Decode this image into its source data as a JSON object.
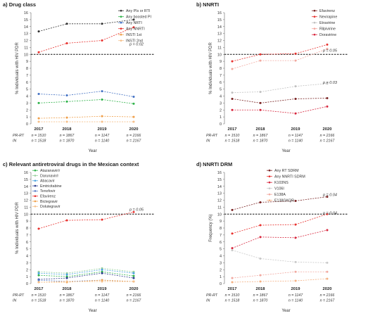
{
  "figure": {
    "y_axis_label_hivdr": "% Individuals with HIV PDR",
    "y_axis_label_freq": "Frequency (%)"
  },
  "chart_data": [
    {
      "type": "line",
      "title": "a) Drug class",
      "xlabel": "Year",
      "ylabel": "% Individuals with HIV PDR",
      "categories": [
        "2017",
        "2018",
        "2019",
        "2020"
      ],
      "ylim": [
        0,
        16
      ],
      "grid": false,
      "legend": "top-right",
      "reference_line": 10,
      "sample_rows": [
        {
          "label": "PR-RT",
          "values": [
            "n = 1510",
            "n = 1867",
            "n = 1147",
            "n = 2166"
          ]
        },
        {
          "label": "IN",
          "values": [
            "n = 1518",
            "n = 1870",
            "n = 1140",
            "n = 2167"
          ]
        }
      ],
      "annotations": [
        {
          "text": "p = 0.02",
          "x": "2020",
          "y": 11.5
        }
      ],
      "series": [
        {
          "name": "Any PIs or RTI",
          "color": "#333333",
          "values": [
            13.3,
            14.4,
            14.4,
            15.0
          ]
        },
        {
          "name": "Any boosted PI",
          "color": "#2fb34a",
          "values": [
            3.0,
            3.2,
            3.5,
            2.9
          ]
        },
        {
          "name": "Any NRTI",
          "color": "#4472c4",
          "values": [
            4.3,
            4.1,
            4.7,
            3.9
          ]
        },
        {
          "name": "Any NNRTI",
          "color": "#e8322f",
          "values": [
            10.3,
            11.6,
            12.0,
            13.9
          ]
        },
        {
          "name": "INSTI 1st",
          "color": "#f0a04b",
          "values": [
            0.8,
            0.9,
            1.1,
            1.0
          ]
        },
        {
          "name": "INSTI 2nd",
          "color": "#f6c08a",
          "values": [
            0.3,
            0.3,
            0.3,
            0.3
          ]
        }
      ]
    },
    {
      "type": "line",
      "title": "b) NNRTI",
      "xlabel": "Year",
      "ylabel": "% Individuals with HIV PDR",
      "categories": [
        "2017",
        "2018",
        "2019",
        "2020"
      ],
      "ylim": [
        0,
        16
      ],
      "grid": false,
      "legend": "top-right",
      "reference_line": 10,
      "sample_rows": [
        {
          "label": "PR-RT",
          "values": [
            "n = 1510",
            "n = 1867",
            "n = 1147",
            "n = 2166"
          ]
        },
        {
          "label": "IN",
          "values": [
            "n = 1518",
            "n = 1870",
            "n = 1140",
            "n = 2167"
          ]
        }
      ],
      "annotations": [
        {
          "text": "p = 0.05",
          "x": "2020",
          "y": 10.6
        },
        {
          "text": "p = 0.03",
          "x": "2020",
          "y": 6.0
        }
      ],
      "series": [
        {
          "name": "Efavirenz",
          "color": "#7a2323",
          "values": [
            3.6,
            3.0,
            3.6,
            3.7
          ]
        },
        {
          "name": "Nevirapine",
          "color": "#e8322f",
          "values": [
            9.0,
            10.0,
            10.1,
            11.4
          ]
        },
        {
          "name": "Etravirine",
          "color": "#c0c0c0",
          "values": [
            4.5,
            4.6,
            5.4,
            5.8
          ]
        },
        {
          "name": "Rilpivirine",
          "color": "#f2a9a0",
          "values": [
            7.9,
            9.1,
            9.1,
            10.8
          ]
        },
        {
          "name": "Doravirine",
          "color": "#d7263d",
          "values": [
            2.0,
            2.0,
            1.5,
            2.5
          ]
        }
      ]
    },
    {
      "type": "line",
      "title": "c) Relevant antiretroviral drugs in the Mexican context",
      "xlabel": "Year",
      "ylabel": "% Individuals with HIV PDR",
      "categories": [
        "2017",
        "2018",
        "2019",
        "2020"
      ],
      "ylim": [
        0,
        16
      ],
      "grid": false,
      "legend": "top-left",
      "reference_line": 10,
      "sample_rows": [
        {
          "label": "PR-RT",
          "values": [
            "n = 1510",
            "n = 1867",
            "n = 1147",
            "n = 2166"
          ]
        },
        {
          "label": "IN",
          "values": [
            "n = 1518",
            "n = 1870",
            "n = 1140",
            "n = 2167"
          ]
        }
      ],
      "annotations": [
        {
          "text": "p = 0.05",
          "x": "2020",
          "y": 10.7
        }
      ],
      "series": [
        {
          "name": "Atazanavir/r",
          "color": "#2fb34a",
          "values": [
            1.2,
            1.0,
            1.7,
            1.1
          ]
        },
        {
          "name": "Darunavir/r",
          "color": "#9ad19f",
          "values": [
            1.7,
            1.5,
            2.2,
            1.7
          ]
        },
        {
          "name": "Abacavir",
          "color": "#4aa3df",
          "values": [
            1.5,
            1.3,
            2.0,
            1.5
          ]
        },
        {
          "name": "Emtricitabine",
          "color": "#2e3f8f",
          "values": [
            0.6,
            0.8,
            1.5,
            0.8
          ]
        },
        {
          "name": "Tenofovir",
          "color": "#5b7fc7",
          "values": [
            0.5,
            0.3,
            0.5,
            0.3
          ]
        },
        {
          "name": "Efavirenz",
          "color": "#e8322f",
          "values": [
            7.9,
            9.1,
            9.2,
            10.3
          ]
        },
        {
          "name": "Bictegravir",
          "color": "#f0a04b",
          "values": [
            0.2,
            0.2,
            0.5,
            0.3
          ]
        },
        {
          "name": "Dolutegravir",
          "color": "#f6c08a",
          "values": [
            0.2,
            0.3,
            0.3,
            0.3
          ]
        }
      ]
    },
    {
      "type": "line",
      "title": "d) NNRTI DRM",
      "xlabel": "Year",
      "ylabel": "Frequency (%)",
      "categories": [
        "2017",
        "2018",
        "2019",
        "2020"
      ],
      "ylim": [
        0,
        16
      ],
      "grid": false,
      "legend": "top-right",
      "reference_line": 10,
      "sample_rows": [
        {
          "label": "PR-RT",
          "values": [
            "n = 1510",
            "n = 1867",
            "n = 1147",
            "n = 2166"
          ]
        },
        {
          "label": "IN",
          "values": [
            "n = 1518",
            "n = 1870",
            "n = 1140",
            "n = 2167"
          ]
        }
      ],
      "annotations": [
        {
          "text": "p = 0.04",
          "x": "2020",
          "y": 12.8
        },
        {
          "text": "p = 0.04",
          "x": "2020",
          "y": 10.2
        }
      ],
      "series": [
        {
          "name": "Any RT SDRM",
          "color": "#7a2323",
          "values": [
            10.6,
            11.7,
            11.9,
            12.5
          ]
        },
        {
          "name": "Any NNRTI SDRM",
          "color": "#e8322f",
          "values": [
            7.2,
            8.4,
            8.5,
            10.0
          ]
        },
        {
          "name": "K103NS",
          "color": "#d7263d",
          "values": [
            5.1,
            6.7,
            6.6,
            7.7
          ]
        },
        {
          "name": "V106I",
          "color": "#c8c8c8",
          "values": [
            4.8,
            3.6,
            3.1,
            3.0
          ]
        },
        {
          "name": "E138A",
          "color": "#f2a9a0",
          "values": [
            0.8,
            1.2,
            1.7,
            1.7
          ]
        },
        {
          "name": "E138GKQR",
          "color": "#f4b183",
          "values": [
            0.2,
            0.3,
            0.4,
            0.7
          ]
        }
      ]
    }
  ]
}
